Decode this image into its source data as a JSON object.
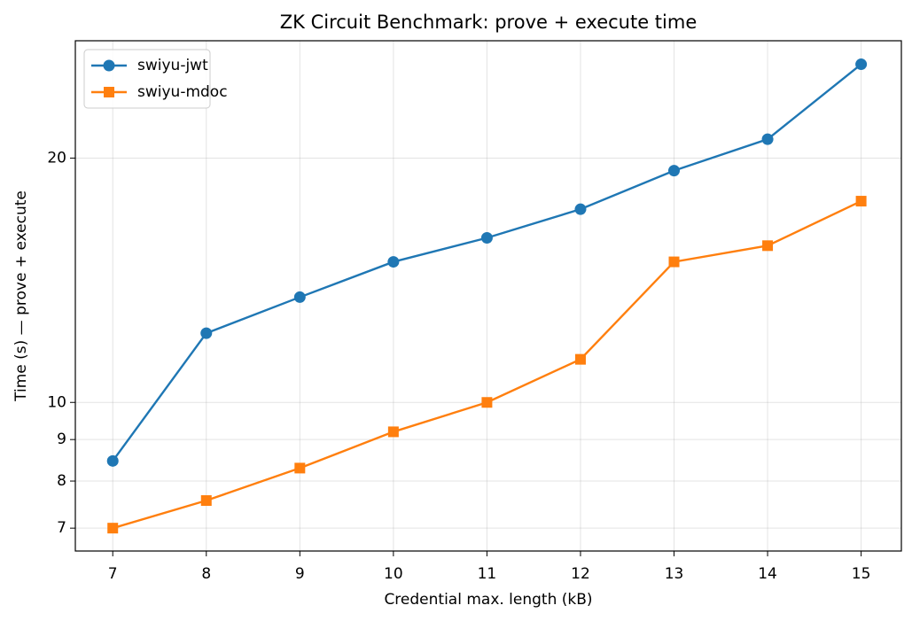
{
  "chart_data": {
    "type": "line",
    "title": "ZK Circuit Benchmark: prove + execute time",
    "x_label": "Credential max. length (kB)",
    "y_label": "Time (s) — prove + execute",
    "x": [
      7,
      8,
      9,
      10,
      11,
      12,
      13,
      14,
      15
    ],
    "series": [
      {
        "name": "swiyu-jwt",
        "color": "#1f77b4",
        "marker": "circle",
        "values": [
          8.47,
          12.17,
          13.48,
          14.9,
          15.95,
          17.3,
          19.3,
          21.1,
          26.1
        ]
      },
      {
        "name": "swiyu-mdoc",
        "color": "#ff7f0e",
        "marker": "square",
        "values": [
          7.0,
          7.57,
          8.3,
          9.2,
          10.0,
          11.3,
          14.9,
          15.6,
          17.7
        ]
      }
    ],
    "xlim": [
      6.6,
      15.43
    ],
    "xticks": [
      7,
      8,
      9,
      10,
      11,
      12,
      13,
      14,
      15
    ],
    "ylim": [
      6.56,
      27.9
    ],
    "yticks": [
      7,
      8,
      9,
      10,
      20
    ],
    "y_scale": "log",
    "grid": true,
    "legend": "upper left"
  }
}
